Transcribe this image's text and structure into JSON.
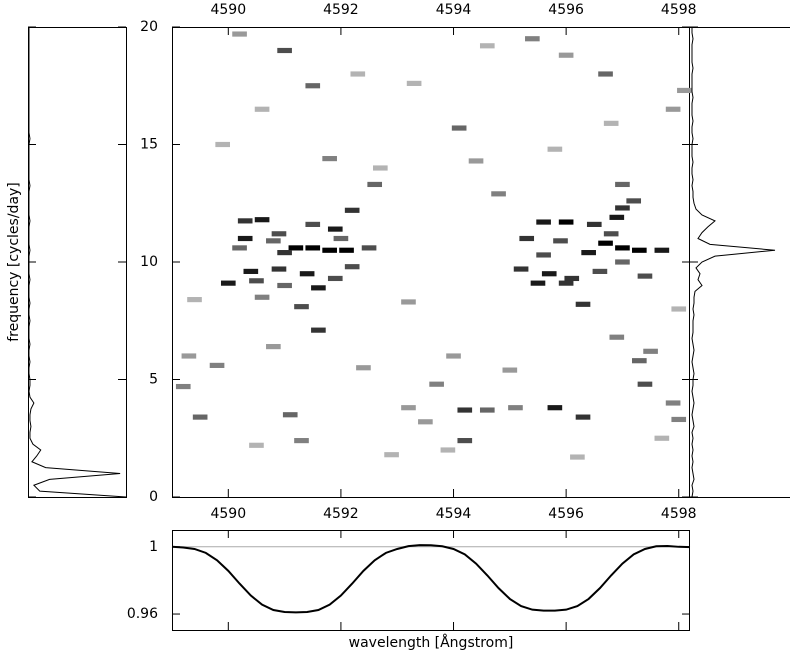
{
  "chart_data": [
    {
      "type": "heatmap",
      "x": [
        4590.6,
        4590.3,
        4591.5,
        4591.9,
        4592.2,
        4590.3,
        4590.8,
        4591.2,
        4591.5,
        4591.8,
        4592.1,
        4591.0,
        4592.5,
        4590.2,
        4590.4,
        4590.9,
        4591.4,
        4591.9,
        4590.0,
        4590.5,
        4591.0,
        4591.6,
        4592.2,
        4591.3,
        4591.6,
        4590.6,
        4592.0,
        4590.9,
        4595.6,
        4596.0,
        4596.5,
        4596.9,
        4597.0,
        4595.3,
        4595.9,
        4596.7,
        4597.0,
        4597.3,
        4597.7,
        4596.4,
        4595.6,
        4595.2,
        4595.7,
        4596.1,
        4596.6,
        4597.4,
        4595.5,
        4596.0,
        4596.3,
        4597.0,
        4597.2,
        4596.8,
        4594.2,
        4594.6,
        4594.2,
        4595.1,
        4595.8,
        4596.3,
        4597.4,
        4597.3,
        4597.9,
        4593.7,
        4593.2,
        4591.1,
        4591.3,
        4589.5,
        4589.8,
        4589.3,
        4589.2,
        4591.0,
        4591.5,
        4591.8,
        4592.6,
        4594.1,
        4594.4,
        4594.8,
        4595.4,
        4596.0,
        4596.7,
        4597.0,
        4598.1,
        4597.9,
        4593.5,
        4598.0,
        4592.4,
        4596.9,
        4597.5,
        4590.8,
        4590.2,
        4589.9,
        4593.2,
        4594.0,
        4595.0,
        4592.9,
        4590.5,
        4596.2,
        4593.9,
        4597.7,
        4589.4,
        4598.0,
        4593.3,
        4594.6,
        4592.3,
        4590.6,
        4595.8,
        4596.8,
        4592.7
      ],
      "y": [
        11.8,
        11.75,
        11.6,
        11.4,
        12.2,
        11.0,
        10.9,
        10.6,
        10.6,
        10.5,
        10.5,
        10.4,
        10.6,
        10.6,
        9.6,
        9.7,
        9.5,
        9.3,
        9.1,
        9.2,
        9.0,
        8.9,
        9.8,
        8.1,
        7.1,
        8.5,
        11.0,
        11.2,
        11.7,
        11.7,
        11.6,
        11.9,
        12.3,
        11.0,
        10.9,
        10.8,
        10.6,
        10.5,
        10.5,
        10.4,
        10.3,
        9.7,
        9.5,
        9.3,
        9.6,
        9.4,
        9.1,
        9.1,
        8.2,
        10.0,
        12.6,
        11.2,
        3.7,
        3.7,
        2.4,
        3.8,
        3.8,
        3.4,
        4.8,
        5.8,
        4.0,
        4.8,
        3.8,
        3.5,
        2.4,
        3.4,
        5.6,
        6.0,
        4.7,
        19.0,
        17.5,
        14.4,
        13.3,
        15.7,
        14.3,
        12.9,
        19.5,
        18.8,
        18.0,
        13.3,
        17.3,
        16.5,
        3.2,
        3.3,
        5.5,
        6.8,
        6.2,
        6.4,
        19.7,
        15.0,
        8.3,
        6.0,
        5.4,
        1.8,
        2.2,
        1.7,
        2.0,
        2.5,
        8.4,
        8.0,
        17.6,
        19.2,
        18.0,
        16.5,
        14.8,
        15.9,
        14.0
      ],
      "values": [
        0.9,
        0.8,
        0.7,
        0.9,
        0.8,
        0.9,
        0.6,
        1.0,
        1.0,
        1.0,
        1.0,
        0.8,
        0.7,
        0.6,
        0.9,
        0.8,
        0.9,
        0.7,
        0.9,
        0.7,
        0.6,
        0.9,
        0.7,
        0.7,
        0.8,
        0.5,
        0.6,
        0.7,
        0.9,
        1.0,
        0.8,
        0.9,
        0.8,
        0.8,
        0.7,
        1.0,
        1.0,
        1.0,
        0.9,
        0.9,
        0.7,
        0.8,
        0.9,
        0.8,
        0.7,
        0.7,
        0.9,
        0.8,
        0.8,
        0.6,
        0.7,
        0.7,
        0.8,
        0.6,
        0.7,
        0.5,
        0.9,
        0.8,
        0.7,
        0.6,
        0.5,
        0.5,
        0.4,
        0.6,
        0.5,
        0.6,
        0.5,
        0.4,
        0.5,
        0.7,
        0.6,
        0.5,
        0.6,
        0.6,
        0.4,
        0.5,
        0.5,
        0.4,
        0.6,
        0.6,
        0.4,
        0.4,
        0.4,
        0.5,
        0.4,
        0.5,
        0.5,
        0.4,
        0.4,
        0.3,
        0.4,
        0.4,
        0.4,
        0.3,
        0.3,
        0.3,
        0.3,
        0.3,
        0.3,
        0.3,
        0.3,
        0.3,
        0.3,
        0.3,
        0.3,
        0.3,
        0.3
      ],
      "xlim": [
        4589.0,
        4598.2
      ],
      "ylim": [
        0,
        20
      ],
      "xticks": [
        4590,
        4592,
        4594,
        4596,
        4598
      ],
      "yticks": [
        0,
        5,
        10,
        15,
        20
      ],
      "ylabel": "frequency [cycles/day]",
      "colormap": "gray_r"
    },
    {
      "type": "line",
      "orientation": "vertical",
      "color": "#000000",
      "x": [
        0,
        0.25,
        0.5,
        0.75,
        1,
        1.25,
        1.5,
        1.75,
        2,
        2.25,
        2.5,
        2.75,
        3,
        3.25,
        3.5,
        3.75,
        4,
        4.25,
        4.5,
        4.75,
        5,
        5.25,
        5.5,
        5.75,
        6,
        6.25,
        6.5,
        6.75,
        7,
        7.25,
        7.5,
        7.75,
        8,
        8.25,
        8.5,
        8.75,
        9,
        9.25,
        9.5,
        9.75,
        10,
        10.25,
        10.5,
        10.75,
        11,
        11.25,
        11.5,
        11.75,
        12,
        12.25,
        12.5,
        12.75,
        13,
        13.25,
        13.5,
        13.75,
        14,
        14.25,
        14.5,
        14.75,
        15,
        15.25,
        15.5,
        15.75,
        16,
        16.25,
        16.5,
        16.75,
        17,
        17.25,
        17.5,
        17.75,
        18,
        18.25,
        18.5,
        18.75,
        19,
        19.25,
        19.5,
        19.75,
        20
      ],
      "values": [
        100,
        12,
        6,
        22,
        94,
        18,
        4,
        9,
        13,
        5,
        2,
        2,
        3,
        2,
        2,
        3,
        6,
        2,
        1,
        2,
        2,
        1,
        1,
        2,
        1,
        1,
        2,
        1,
        1,
        1,
        2,
        1,
        1,
        2,
        1,
        1,
        1,
        2,
        1,
        1,
        1,
        1,
        2,
        1,
        1,
        1,
        1,
        2,
        1,
        1,
        1,
        1,
        1,
        2,
        1,
        1,
        1,
        1,
        1,
        1,
        1,
        2,
        1,
        1,
        1,
        1,
        1,
        1,
        1,
        1,
        1,
        1,
        1,
        1,
        1,
        1,
        1,
        1,
        1,
        1,
        1
      ],
      "xlim": [
        0,
        20
      ],
      "ylim": [
        0,
        100
      ]
    },
    {
      "type": "line",
      "orientation": "vertical",
      "color": "#000000",
      "x": [
        0,
        0.25,
        0.5,
        0.75,
        1,
        1.25,
        1.5,
        1.75,
        2,
        2.25,
        2.5,
        2.75,
        3,
        3.25,
        3.5,
        3.75,
        4,
        4.25,
        4.5,
        4.75,
        5,
        5.25,
        5.5,
        5.75,
        6,
        6.25,
        6.5,
        6.75,
        7,
        7.25,
        7.5,
        7.75,
        8,
        8.25,
        8.5,
        8.75,
        9,
        9.25,
        9.5,
        9.75,
        10,
        10.25,
        10.5,
        10.75,
        11,
        11.25,
        11.5,
        11.75,
        12,
        12.25,
        12.5,
        12.75,
        13,
        13.25,
        13.5,
        13.75,
        14,
        14.25,
        14.5,
        14.75,
        15,
        15.25,
        15.5,
        15.75,
        16,
        16.25,
        16.5,
        16.75,
        17,
        17.25,
        17.5,
        17.75,
        18,
        18.25,
        18.5,
        18.75,
        19,
        19.25,
        19.5,
        19.75,
        20
      ],
      "values": [
        2,
        3,
        2,
        4,
        3,
        2,
        3,
        2,
        3,
        2,
        3,
        2,
        4,
        3,
        2,
        3,
        4,
        3,
        2,
        3,
        3,
        4,
        3,
        2,
        3,
        4,
        3,
        2,
        3,
        3,
        3,
        4,
        3,
        4,
        4,
        5,
        12,
        8,
        10,
        6,
        12,
        25,
        85,
        20,
        8,
        12,
        18,
        25,
        12,
        6,
        4,
        3,
        3,
        2,
        3,
        2,
        2,
        3,
        2,
        2,
        2,
        3,
        2,
        2,
        3,
        2,
        2,
        2,
        3,
        2,
        2,
        2,
        2,
        3,
        2,
        2,
        2,
        2,
        3,
        2,
        2
      ],
      "xlim": [
        0,
        20
      ],
      "ylim": [
        0,
        100
      ]
    },
    {
      "type": "line",
      "color": "#000000",
      "x": [
        4589.0,
        4589.2,
        4589.4,
        4589.6,
        4589.8,
        4590.0,
        4590.2,
        4590.4,
        4590.6,
        4590.8,
        4591.0,
        4591.2,
        4591.4,
        4591.6,
        4591.8,
        4592.0,
        4592.2,
        4592.4,
        4592.6,
        4592.8,
        4593.0,
        4593.2,
        4593.4,
        4593.6,
        4593.8,
        4594.0,
        4594.2,
        4594.4,
        4594.6,
        4594.8,
        4595.0,
        4595.2,
        4595.4,
        4595.6,
        4595.8,
        4596.0,
        4596.2,
        4596.4,
        4596.6,
        4596.8,
        4597.0,
        4597.2,
        4597.4,
        4597.6,
        4597.8,
        4598.0,
        4598.2
      ],
      "values": [
        1.0,
        0.9996,
        0.9987,
        0.9964,
        0.992,
        0.9857,
        0.9781,
        0.971,
        0.9656,
        0.9624,
        0.9612,
        0.961,
        0.9612,
        0.9624,
        0.9656,
        0.971,
        0.9781,
        0.9857,
        0.992,
        0.9964,
        0.9987,
        1.0004,
        1.001,
        1.0009,
        1.0003,
        0.9987,
        0.9955,
        0.99,
        0.983,
        0.9754,
        0.969,
        0.9647,
        0.9626,
        0.962,
        0.962,
        0.9626,
        0.9647,
        0.969,
        0.9754,
        0.983,
        0.99,
        0.9955,
        0.9987,
        1.0003,
        1.0005,
        1.0,
        0.9998
      ],
      "xlim": [
        4589.0,
        4598.2
      ],
      "ylim": [
        0.9505,
        1.01
      ],
      "yticks": [
        0.96,
        1
      ],
      "hline": 1,
      "xlabel": "wavelength [Ångstrom]"
    }
  ]
}
